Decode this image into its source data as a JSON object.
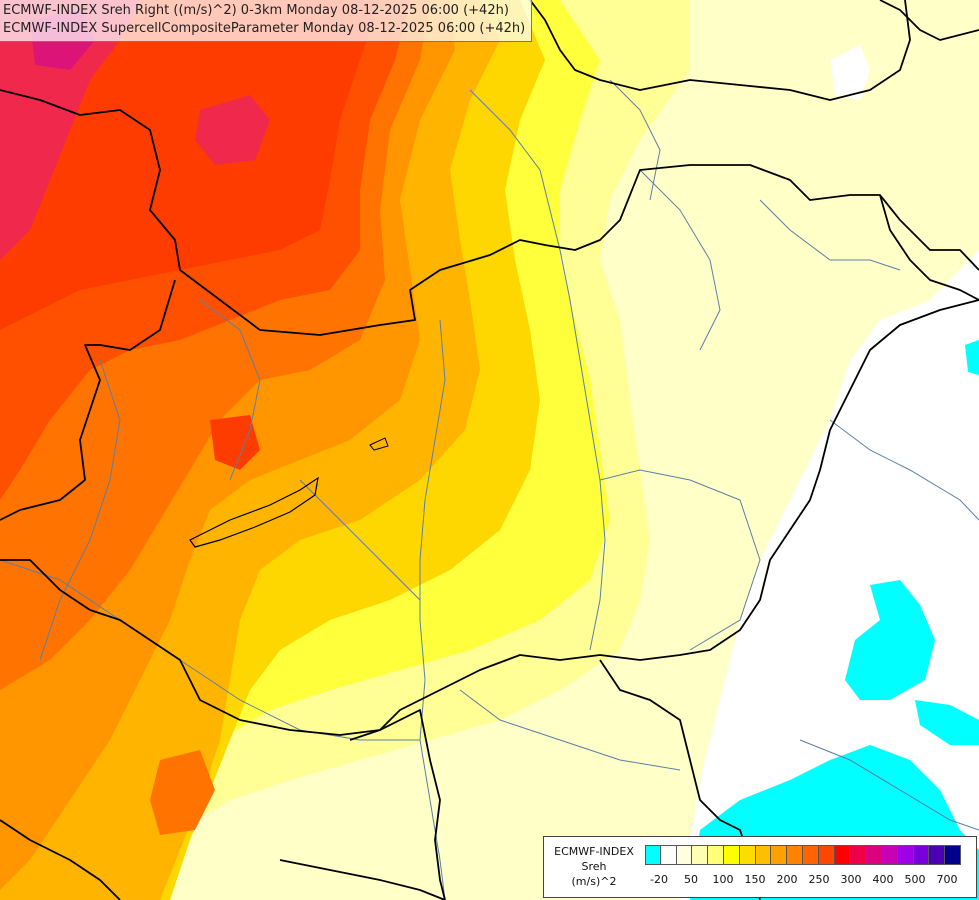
{
  "titles": {
    "line1": "ECMWF-INDEX Sreh Right ((m/s)^2) 0-3km Monday 08-12-2025 06:00 (+42h)",
    "line2": "ECMWF-INDEX SupercellCompositeParameter Monday 08-12-2025 06:00 (+42h)"
  },
  "legend": {
    "line1": "ECMWF-INDEX",
    "line2": "Sreh",
    "line3": "(m/s)^2",
    "colors": [
      "#00ffff",
      "#ffffff",
      "#ffffe0",
      "#ffffb4",
      "#ffff78",
      "#ffff00",
      "#ffdc00",
      "#ffbe00",
      "#ffa000",
      "#ff8200",
      "#ff6400",
      "#ff4600",
      "#ff0000",
      "#f00046",
      "#dc007e",
      "#c800b4",
      "#a000e6",
      "#7800dc",
      "#4b00b4",
      "#00008c"
    ],
    "ticks": [
      "-20",
      "50",
      "100",
      "150",
      "200",
      "250",
      "300",
      "400",
      "500",
      "700"
    ]
  },
  "map": {
    "fill_colors": {
      "cyan": "#00ffff",
      "white": "#ffffff",
      "pale_yellow": "#ffffc8",
      "light_yellow": "#ffff96",
      "yellow": "#ffff3c",
      "gold": "#ffd700",
      "amber": "#ffb400",
      "orange": "#ff9600",
      "dark_orange": "#ff7300",
      "red_orange": "#ff5000",
      "red": "#ff3c00",
      "crimson": "#f0284b",
      "magenta": "#dc1478"
    },
    "border_color": "#000000",
    "river_color": "#5a7fa8"
  }
}
